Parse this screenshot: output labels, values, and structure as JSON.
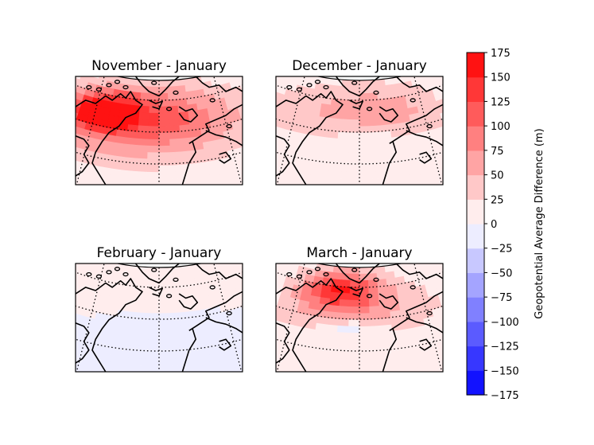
{
  "chart_data": {
    "type": "contour-map",
    "panels": [
      {
        "title": "November - January",
        "field": [
          {
            "dx": -0.34,
            "dy": -0.18,
            "sx": 0.22,
            "sy": 0.18,
            "amp": 120
          },
          {
            "dx": -0.2,
            "dy": -0.08,
            "sx": 0.5,
            "sy": 0.35,
            "amp": 70
          },
          {
            "dx": 0.12,
            "dy": -0.12,
            "sx": 0.5,
            "sy": 0.3,
            "amp": 50
          },
          {
            "dx": 0.0,
            "dy": 0.1,
            "sx": 0.9,
            "sy": 0.6,
            "amp": 10
          }
        ]
      },
      {
        "title": "December - January",
        "field": [
          {
            "dx": -0.15,
            "dy": -0.2,
            "sx": 0.45,
            "sy": 0.25,
            "amp": 40
          },
          {
            "dx": 0.25,
            "dy": -0.2,
            "sx": 0.3,
            "sy": 0.25,
            "amp": 30
          },
          {
            "dx": 0.0,
            "dy": 0.05,
            "sx": 0.9,
            "sy": 0.6,
            "amp": 12
          },
          {
            "dx": 0.05,
            "dy": 0.05,
            "sx": 0.12,
            "sy": 0.05,
            "amp": -25
          }
        ]
      },
      {
        "title": "February - January",
        "field": [
          {
            "dx": -0.05,
            "dy": -0.2,
            "sx": 0.7,
            "sy": 0.2,
            "amp": 22
          },
          {
            "dx": 0.2,
            "dy": 0.05,
            "sx": 0.5,
            "sy": 0.25,
            "amp": -14
          },
          {
            "dx": -0.2,
            "dy": 0.15,
            "sx": 0.5,
            "sy": 0.2,
            "amp": -10
          }
        ]
      },
      {
        "title": "March - January",
        "field": [
          {
            "dx": -0.12,
            "dy": -0.25,
            "sx": 0.22,
            "sy": 0.18,
            "amp": 110
          },
          {
            "dx": -0.05,
            "dy": -0.15,
            "sx": 0.45,
            "sy": 0.3,
            "amp": 45
          },
          {
            "dx": 0.25,
            "dy": -0.05,
            "sx": 0.4,
            "sy": 0.3,
            "amp": 18
          },
          {
            "dx": -0.05,
            "dy": 0.1,
            "sx": 0.18,
            "sy": 0.06,
            "amp": -40
          },
          {
            "dx": -0.35,
            "dy": 0.0,
            "sx": 0.2,
            "sy": 0.15,
            "amp": 15
          }
        ]
      }
    ],
    "colorbar": {
      "label": "Geopotential Average Difference (m)",
      "min": -175,
      "max": 175,
      "step": 25,
      "ticks": [
        "175",
        "150",
        "125",
        "100",
        "75",
        "50",
        "25",
        "0",
        "−25",
        "−50",
        "−75",
        "−100",
        "−125",
        "−150",
        "−175"
      ],
      "tick_values": [
        175,
        150,
        125,
        100,
        75,
        50,
        25,
        0,
        -25,
        -50,
        -75,
        -100,
        -125,
        -150,
        -175
      ]
    },
    "colors": {
      "negative": "#0000ff",
      "neutral": "#ffffff",
      "positive": "#ff0000"
    }
  }
}
